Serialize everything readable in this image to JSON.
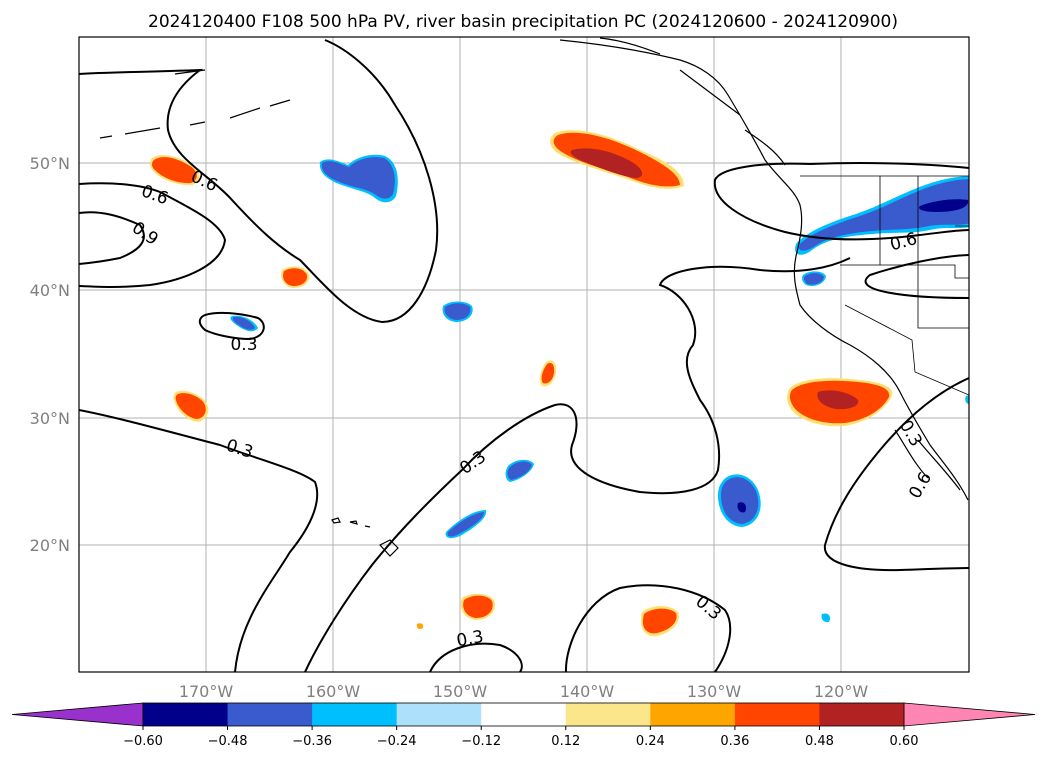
{
  "title": "2024120400 F108 500 hPa PV, river basin precipitation PC (2024120600 - 2024120900)",
  "map": {
    "lon_ticks": [
      "170°W",
      "160°W",
      "150°W",
      "140°W",
      "130°W",
      "120°W"
    ],
    "lat_ticks": [
      "50°N",
      "40°N",
      "30°N",
      "20°N"
    ],
    "contour_labels": [
      "0.6",
      "0.6",
      "0.9",
      "0.3",
      "0.3",
      "0.3",
      "0.3",
      "0.3",
      "0.6",
      "0.6",
      "0.3",
      "0.3"
    ]
  },
  "colorbar": {
    "colors": [
      "#9932CC",
      "#00008B",
      "#3A5BCD",
      "#00BFFF",
      "#ADE0FA",
      "#FFFFFF",
      "#FCE68C",
      "#FFA500",
      "#FF4500",
      "#B22222",
      "#FF86B2",
      "#FF86B2"
    ],
    "tick_labels": [
      "−0.60",
      "−0.48",
      "−0.36",
      "−0.24",
      "−0.12",
      "0.12",
      "0.24",
      "0.36",
      "0.48",
      "0.60"
    ]
  }
}
